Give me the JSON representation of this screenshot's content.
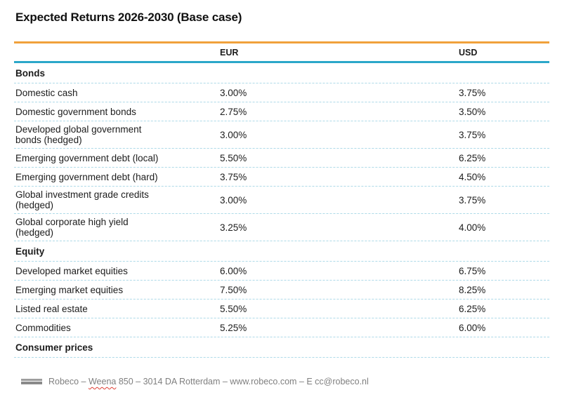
{
  "page": {
    "title": "Expected Returns 2026-2030 (Base case)"
  },
  "table": {
    "column_headers": {
      "eur": "EUR",
      "usd": "USD"
    },
    "sections": [
      {
        "label": "Bonds",
        "rows": [
          {
            "label": "Domestic cash",
            "eur": "3.00%",
            "usd": "3.75%"
          },
          {
            "label": "Domestic government bonds",
            "eur": "2.75%",
            "usd": "3.50%"
          },
          {
            "label": "Developed global government\nbonds (hedged)",
            "eur": "3.00%",
            "usd": "3.75%"
          },
          {
            "label": "Emerging government debt (local)",
            "eur": "5.50%",
            "usd": "6.25%"
          },
          {
            "label": "Emerging government debt (hard)",
            "eur": "3.75%",
            "usd": "4.50%"
          },
          {
            "label": "Global investment grade credits\n(hedged)",
            "eur": "3.00%",
            "usd": "3.75%"
          },
          {
            "label": "Global corporate high yield\n(hedged)",
            "eur": "3.25%",
            "usd": "4.00%"
          }
        ]
      },
      {
        "label": "Equity",
        "rows": [
          {
            "label": "Developed market equities",
            "eur": "6.00%",
            "usd": "6.75%"
          },
          {
            "label": "Emerging market equities",
            "eur": "7.50%",
            "usd": "8.25%"
          },
          {
            "label": "Listed real estate",
            "eur": "5.50%",
            "usd": "6.25%"
          },
          {
            "label": "Commodities",
            "eur": "5.25%",
            "usd": "6.00%"
          }
        ]
      },
      {
        "label": "Consumer prices",
        "rows": []
      }
    ]
  },
  "footer": {
    "prefix": "Robeco – ",
    "misspelled_word": "Weena",
    "suffix": " 850 – 3014 DA Rotterdam – www.robeco.com – E cc@robeco.nl",
    "logo_icon": "bars-icon"
  },
  "colors": {
    "accent_orange": "#F0A13B",
    "accent_teal": "#2BA7C9",
    "row_divider": "#AEDAE8",
    "text": "#1C1C1C",
    "footer_text": "#7F7F7F",
    "spellcheck_red": "#E03C31"
  }
}
